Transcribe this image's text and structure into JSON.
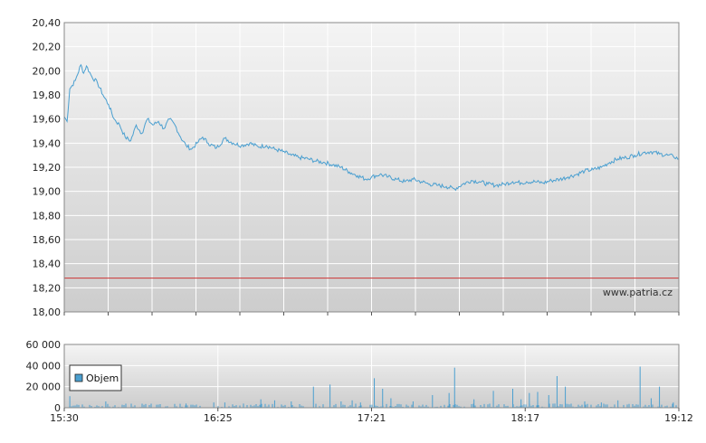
{
  "watermark": "www.patria.cz",
  "colors": {
    "price_line": "#4a9fd0",
    "reference_line": "#cc3333",
    "volume_bar": "#4a9fd0",
    "grid": "#ffffff",
    "panel_top": "#f4f4f4",
    "panel_bottom": "#cdcdcd"
  },
  "chart_data": [
    {
      "type": "line",
      "name": "price",
      "ylim": [
        18.0,
        20.4
      ],
      "y_ticks": [
        "20,40",
        "20,20",
        "20,00",
        "19,80",
        "19,60",
        "19,40",
        "19,20",
        "19,00",
        "18,80",
        "18,60",
        "18,40",
        "18,20",
        "18,00"
      ],
      "x_ticks": [
        "15:30",
        "16:25",
        "17:21",
        "18:17",
        "19:12"
      ],
      "grid": true,
      "reference_value": 18.28,
      "series": [
        {
          "x": [
            "15:30",
            "15:31",
            "15:32",
            "15:34",
            "15:36",
            "15:37",
            "15:38",
            "15:40",
            "15:42",
            "15:44",
            "15:46",
            "15:48",
            "15:50",
            "15:52",
            "15:54",
            "15:56",
            "15:58",
            "16:00",
            "16:02",
            "16:04",
            "16:06",
            "16:08",
            "16:10",
            "16:12",
            "16:14",
            "16:16",
            "16:18",
            "16:20",
            "16:22",
            "16:25",
            "16:28",
            "16:31",
            "16:34",
            "16:37",
            "16:40",
            "16:43",
            "16:46",
            "16:49",
            "16:52",
            "16:55",
            "16:58",
            "17:01",
            "17:04",
            "17:07",
            "17:10",
            "17:13",
            "17:16",
            "17:19",
            "17:21",
            "17:24",
            "17:27",
            "17:30",
            "17:33",
            "17:36",
            "17:39",
            "17:42",
            "17:45",
            "17:48",
            "17:51",
            "17:54",
            "17:57",
            "18:00",
            "18:03",
            "18:06",
            "18:09",
            "18:12",
            "18:15",
            "18:17",
            "18:20",
            "18:23",
            "18:26",
            "18:29",
            "18:32",
            "18:35",
            "18:38",
            "18:41",
            "18:44",
            "18:47",
            "18:50",
            "18:53",
            "18:56",
            "18:59",
            "19:02",
            "19:05",
            "19:08",
            "19:10",
            "19:12"
          ],
          "y": [
            19.62,
            19.58,
            19.85,
            19.92,
            20.05,
            19.98,
            20.04,
            19.95,
            19.9,
            19.8,
            19.72,
            19.6,
            19.55,
            19.45,
            19.42,
            19.55,
            19.48,
            19.6,
            19.55,
            19.58,
            19.52,
            19.6,
            19.55,
            19.45,
            19.38,
            19.35,
            19.4,
            19.45,
            19.4,
            19.36,
            19.44,
            19.4,
            19.38,
            19.4,
            19.37,
            19.38,
            19.35,
            19.33,
            19.3,
            19.28,
            19.27,
            19.25,
            19.24,
            19.22,
            19.2,
            19.16,
            19.13,
            19.1,
            19.12,
            19.14,
            19.12,
            19.1,
            19.08,
            19.1,
            19.08,
            19.06,
            19.05,
            19.04,
            19.02,
            19.06,
            19.09,
            19.08,
            19.06,
            19.05,
            19.06,
            19.08,
            19.07,
            19.08,
            19.08,
            19.07,
            19.09,
            19.1,
            19.12,
            19.14,
            19.17,
            19.18,
            19.2,
            19.24,
            19.27,
            19.28,
            19.3,
            19.32,
            19.33,
            19.31,
            19.3,
            19.29,
            19.27
          ]
        }
      ]
    },
    {
      "type": "bar",
      "name": "volume",
      "ylim": [
        0,
        60000
      ],
      "y_ticks": [
        "60 000",
        "40 000",
        "20 000",
        "0"
      ],
      "x_ticks": [
        "15:30",
        "16:25",
        "17:21",
        "18:17",
        "19:12"
      ],
      "legend": "Objem",
      "legend_position": "left",
      "grid": true,
      "spikes": [
        {
          "x": "15:32",
          "value": 11000
        },
        {
          "x": "15:45",
          "value": 6000
        },
        {
          "x": "16:14",
          "value": 4000
        },
        {
          "x": "16:24",
          "value": 5000
        },
        {
          "x": "16:28",
          "value": 5000
        },
        {
          "x": "16:41",
          "value": 8000
        },
        {
          "x": "16:46",
          "value": 7000
        },
        {
          "x": "16:52",
          "value": 6000
        },
        {
          "x": "17:00",
          "value": 20000
        },
        {
          "x": "17:06",
          "value": 22000
        },
        {
          "x": "17:10",
          "value": 6000
        },
        {
          "x": "17:14",
          "value": 7000
        },
        {
          "x": "17:17",
          "value": 5000
        },
        {
          "x": "17:22",
          "value": 28000
        },
        {
          "x": "17:25",
          "value": 18000
        },
        {
          "x": "17:28",
          "value": 9000
        },
        {
          "x": "17:36",
          "value": 6000
        },
        {
          "x": "17:43",
          "value": 12000
        },
        {
          "x": "17:49",
          "value": 14000
        },
        {
          "x": "17:51",
          "value": 38000
        },
        {
          "x": "17:58",
          "value": 8000
        },
        {
          "x": "18:05",
          "value": 16000
        },
        {
          "x": "18:12",
          "value": 18000
        },
        {
          "x": "18:15",
          "value": 8000
        },
        {
          "x": "18:18",
          "value": 14000
        },
        {
          "x": "18:21",
          "value": 15000
        },
        {
          "x": "18:25",
          "value": 12000
        },
        {
          "x": "18:28",
          "value": 30000
        },
        {
          "x": "18:31",
          "value": 20000
        },
        {
          "x": "18:38",
          "value": 6000
        },
        {
          "x": "18:44",
          "value": 5000
        },
        {
          "x": "18:50",
          "value": 7000
        },
        {
          "x": "18:58",
          "value": 39000
        },
        {
          "x": "19:02",
          "value": 9000
        },
        {
          "x": "19:05",
          "value": 20000
        },
        {
          "x": "19:10",
          "value": 5000
        }
      ],
      "baseline_range": [
        500,
        4000
      ]
    }
  ]
}
